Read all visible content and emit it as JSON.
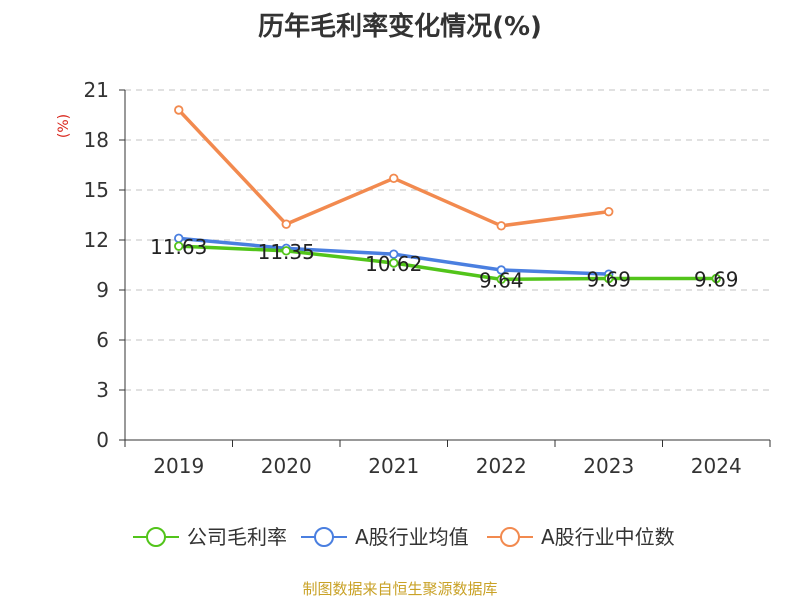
{
  "chart_data": {
    "type": "line",
    "title": "历年毛利率变化情况(%)",
    "ylabel": "(%)",
    "categories": [
      "2019",
      "2020",
      "2021",
      "2022",
      "2023",
      "2024"
    ],
    "y_ticks": [
      "0",
      "3",
      "6",
      "9",
      "12",
      "15",
      "18",
      "21"
    ],
    "ylim": [
      0,
      21
    ],
    "grid": true,
    "legend_position": "bottom",
    "series": [
      {
        "name": "公司毛利率",
        "color": "#52c41a",
        "values": [
          11.63,
          11.35,
          10.62,
          9.64,
          9.69,
          9.69
        ],
        "labels": [
          "11.63",
          "11.35",
          "10.62",
          "9.64",
          "9.69",
          "9.69"
        ]
      },
      {
        "name": "A股行业均值",
        "color": "#4a7fe0",
        "values": [
          12.1,
          11.5,
          11.15,
          10.2,
          9.95,
          null
        ]
      },
      {
        "name": "A股行业中位数",
        "color": "#f28a4f",
        "values": [
          19.8,
          12.95,
          15.7,
          12.85,
          13.7,
          null
        ]
      }
    ]
  },
  "footer": {
    "source": "制图数据来自恒生聚源数据库"
  }
}
